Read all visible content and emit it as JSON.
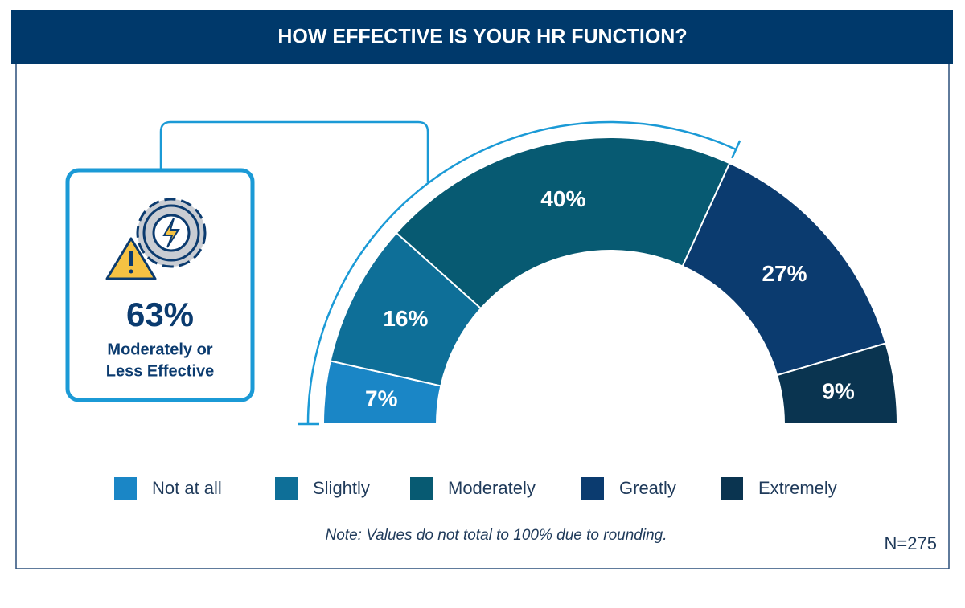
{
  "chart_data": {
    "type": "pie",
    "title": "HOW EFFECTIVE IS YOUR HR FUNCTION?",
    "categories": [
      "Not at all",
      "Slightly",
      "Moderately",
      "Greatly",
      "Extremely"
    ],
    "values": [
      7,
      16,
      40,
      27,
      9
    ],
    "value_labels": [
      "7%",
      "16%",
      "40%",
      "27%",
      "9%"
    ],
    "colors": [
      "#1a86c6",
      "#0e6f98",
      "#075a72",
      "#0b3b6f",
      "#0a3450"
    ],
    "callout": {
      "value": 63,
      "label": "63%",
      "text": [
        "Moderately or",
        "Less Effective"
      ]
    },
    "note": "Note: Values do not total to 100% due to rounding.",
    "sample": "N=275"
  }
}
